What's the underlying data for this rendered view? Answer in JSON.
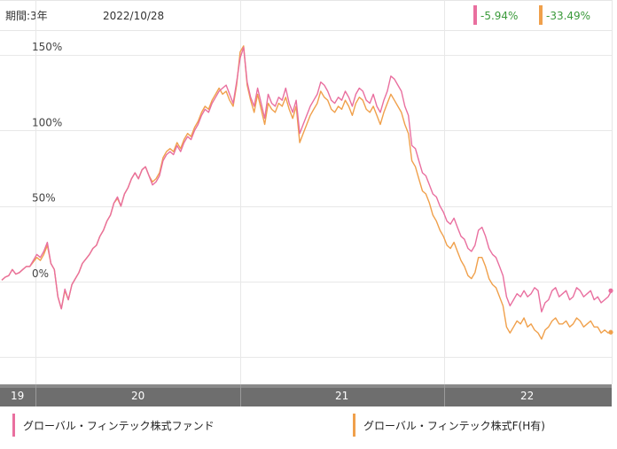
{
  "header": {
    "period": "期間:3年",
    "date": "2022/10/28"
  },
  "returns": [
    {
      "value": "-5.94%",
      "color": "#e96f9f"
    },
    {
      "value": "-33.49%",
      "color": "#f0a04b"
    }
  ],
  "chart_data": {
    "type": "line",
    "xlabel": "",
    "ylabel": "",
    "ylim": [
      -50,
      170
    ],
    "yticks": [
      0,
      50,
      100,
      150
    ],
    "ytick_labels": [
      "0%",
      "50%",
      "100%",
      "150%"
    ],
    "xtick_labels": [
      "19",
      "20",
      "21",
      "22"
    ],
    "grid": true,
    "series": [
      {
        "name": "グローバル・フィンテック株式ファンド",
        "color": "#e96f9f",
        "values": [
          1,
          3,
          4,
          8,
          5,
          6,
          8,
          10,
          10,
          14,
          18,
          16,
          20,
          26,
          12,
          8,
          -10,
          -18,
          -5,
          -12,
          -2,
          2,
          6,
          12,
          15,
          18,
          22,
          24,
          30,
          34,
          40,
          44,
          52,
          56,
          50,
          58,
          62,
          68,
          72,
          68,
          74,
          76,
          70,
          64,
          66,
          70,
          80,
          84,
          86,
          84,
          90,
          86,
          92,
          96,
          94,
          100,
          104,
          110,
          114,
          112,
          118,
          122,
          126,
          128,
          130,
          124,
          118,
          132,
          148,
          155,
          132,
          122,
          116,
          128,
          118,
          108,
          124,
          118,
          116,
          122,
          120,
          128,
          118,
          112,
          120,
          98,
          104,
          110,
          116,
          120,
          124,
          132,
          130,
          126,
          120,
          118,
          122,
          120,
          126,
          122,
          116,
          124,
          128,
          126,
          120,
          118,
          124,
          116,
          112,
          120,
          126,
          136,
          134,
          130,
          126,
          116,
          110,
          90,
          88,
          80,
          72,
          70,
          64,
          58,
          56,
          50,
          46,
          40,
          38,
          42,
          36,
          30,
          28,
          22,
          20,
          24,
          34,
          36,
          30,
          22,
          18,
          16,
          10,
          4,
          -10,
          -16,
          -12,
          -8,
          -10,
          -6,
          -10,
          -8,
          -4,
          -6,
          -20,
          -14,
          -12,
          -6,
          -4,
          -10,
          -8,
          -6,
          -12,
          -10,
          -4,
          -6,
          -10,
          -8,
          -6,
          -12,
          -10,
          -14,
          -12,
          -10,
          -6
        ],
        "end_value": -5.94
      },
      {
        "name": "グローバル・フィンテック株式F(H有)",
        "color": "#f0a04b",
        "values": [
          1,
          3,
          4,
          8,
          5,
          6,
          8,
          10,
          10,
          13,
          16,
          14,
          18,
          24,
          12,
          8,
          -10,
          -18,
          -6,
          -12,
          -2,
          2,
          6,
          12,
          15,
          18,
          22,
          24,
          30,
          34,
          40,
          44,
          52,
          55,
          50,
          58,
          62,
          68,
          72,
          68,
          74,
          76,
          70,
          66,
          68,
          72,
          82,
          86,
          88,
          86,
          92,
          88,
          94,
          98,
          96,
          102,
          106,
          112,
          116,
          114,
          120,
          124,
          128,
          124,
          126,
          120,
          116,
          130,
          152,
          156,
          130,
          120,
          112,
          124,
          114,
          104,
          118,
          114,
          112,
          118,
          116,
          122,
          114,
          108,
          116,
          92,
          98,
          104,
          110,
          114,
          118,
          126,
          122,
          120,
          114,
          112,
          116,
          114,
          120,
          116,
          110,
          118,
          122,
          120,
          114,
          112,
          116,
          110,
          104,
          112,
          118,
          124,
          120,
          116,
          112,
          104,
          98,
          80,
          76,
          68,
          60,
          58,
          52,
          44,
          40,
          34,
          30,
          24,
          22,
          26,
          20,
          14,
          10,
          4,
          2,
          6,
          16,
          16,
          10,
          2,
          -2,
          -4,
          -10,
          -16,
          -30,
          -34,
          -30,
          -26,
          -28,
          -24,
          -30,
          -28,
          -32,
          -34,
          -38,
          -32,
          -30,
          -26,
          -24,
          -28,
          -28,
          -26,
          -30,
          -28,
          -24,
          -26,
          -30,
          -28,
          -26,
          -30,
          -30,
          -34,
          -32,
          -34,
          -33.49
        ],
        "end_value": -33.49
      }
    ]
  },
  "legend": [
    {
      "label": "グローバル・フィンテック株式ファンド",
      "color": "#e96f9f"
    },
    {
      "label": "グローバル・フィンテック株式F(H有)",
      "color": "#f0a04b"
    }
  ]
}
